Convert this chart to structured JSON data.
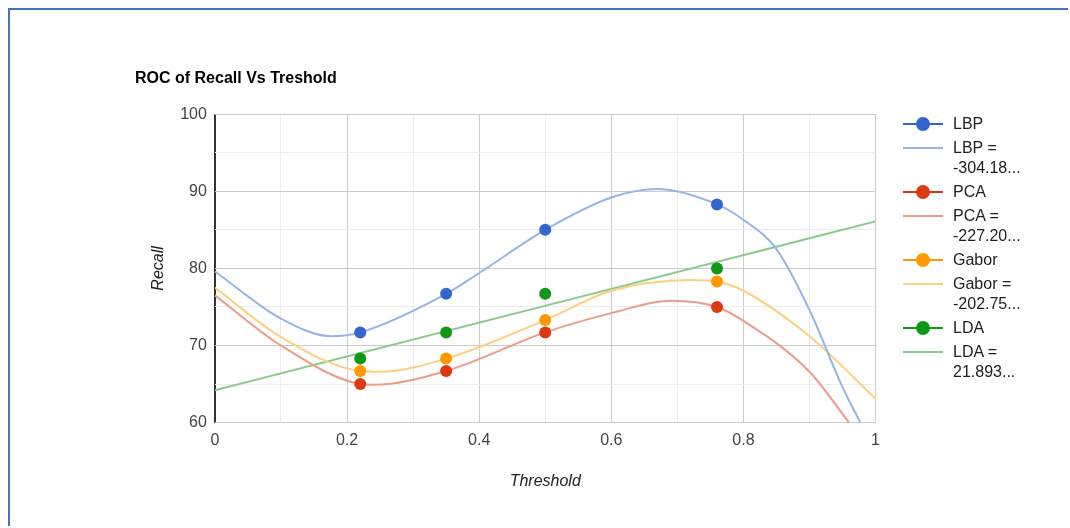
{
  "chart_data": {
    "type": "scatter",
    "title": "ROC of Recall Vs Treshold",
    "xlabel": "Threshold",
    "ylabel": "Recall",
    "xlim": [
      0,
      1
    ],
    "xticks": [
      0,
      {
        "value": 0.1,
        "label": null
      },
      0.2,
      {
        "value": 0.3,
        "label": null
      },
      0.4,
      {
        "value": 0.5,
        "label": null
      },
      0.6,
      {
        "value": 0.7,
        "label": null
      },
      0.8,
      {
        "value": 0.9,
        "label": null
      },
      1
    ],
    "ylim": [
      60,
      100
    ],
    "yticks": [
      60,
      {
        "value": 65,
        "label": null
      },
      70,
      {
        "value": 75,
        "label": null
      },
      80,
      {
        "value": 85,
        "label": null
      },
      90,
      {
        "value": 95,
        "label": null
      },
      100
    ],
    "grid": true,
    "legend": "right",
    "series": [
      {
        "name": "LBP",
        "type": "scatter",
        "marker": "circle",
        "color": "#3366cc",
        "x": [
          0.22,
          0.35,
          0.5,
          0.76
        ],
        "values": [
          71.7,
          76.7,
          85,
          88.3
        ]
      },
      {
        "name": "LBP = -304.18...",
        "type": "line",
        "marker": "none",
        "color": "#97b4e8",
        "x": [
          0,
          0.1,
          0.177,
          0.22,
          0.35,
          0.4,
          0.5,
          0.6,
          0.67,
          0.76,
          0.8,
          0.85,
          0.9,
          0.95,
          0.977
        ],
        "values": [
          79.6,
          73.5,
          71.2,
          71.7,
          76.7,
          79.4,
          85,
          89.2,
          90.3,
          88.3,
          86.3,
          82.5,
          74.6,
          64.6,
          60
        ]
      },
      {
        "name": "PCA",
        "type": "scatter",
        "marker": "circle",
        "color": "#dc3912",
        "x": [
          0.22,
          0.35,
          0.5,
          0.76
        ],
        "values": [
          65,
          66.7,
          71.7,
          75
        ]
      },
      {
        "name": "PCA = -227.20...",
        "type": "line",
        "marker": "none",
        "color": "#ec9d8a",
        "x": [
          0,
          0.1,
          0.22,
          0.24,
          0.35,
          0.5,
          0.6,
          0.69,
          0.76,
          0.8,
          0.9,
          0.96
        ],
        "values": [
          76.5,
          70,
          65,
          64.9,
          66.7,
          71.7,
          74.2,
          75.8,
          75,
          73.2,
          66.6,
          60
        ]
      },
      {
        "name": "Gabor",
        "type": "scatter",
        "marker": "circle",
        "color": "#ff9900",
        "x": [
          0.22,
          0.35,
          0.5,
          0.76
        ],
        "values": [
          66.7,
          68.3,
          73.3,
          78.3
        ]
      },
      {
        "name": "Gabor = -202.75...",
        "type": "line",
        "marker": "none",
        "color": "#ffcf80",
        "x": [
          0,
          0.1,
          0.22,
          0.25,
          0.35,
          0.5,
          0.6,
          0.72,
          0.76,
          0.8,
          0.9,
          1
        ],
        "values": [
          77.5,
          71.1,
          66.7,
          66.6,
          68.3,
          73.3,
          77.1,
          78.5,
          78.3,
          77.1,
          71.2,
          63.1
        ]
      },
      {
        "name": "LDA",
        "type": "scatter",
        "marker": "circle",
        "color": "#109618",
        "x": [
          0.22,
          0.35,
          0.5,
          0.76
        ],
        "values": [
          68.3,
          71.7,
          76.7,
          80
        ]
      },
      {
        "name": "LDA = 21.893...",
        "type": "line",
        "marker": "none",
        "color": "#88cb8c",
        "x": [
          0,
          1
        ],
        "values": [
          64.2,
          86.1
        ]
      }
    ]
  }
}
